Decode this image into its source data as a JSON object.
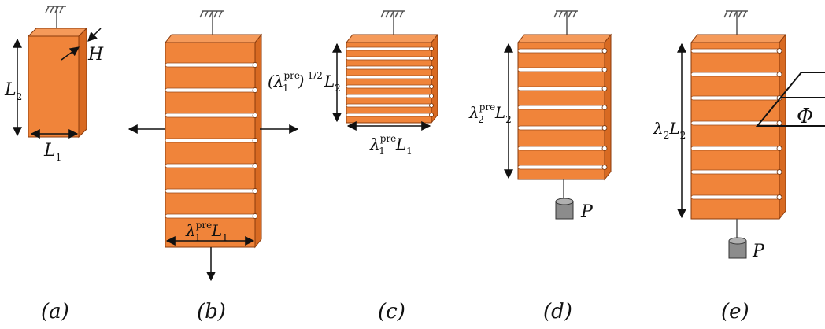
{
  "colors": {
    "front": "#f0843a",
    "side": "#d86a22",
    "top": "#f59a5a",
    "edge": "#8a3b0c",
    "slit": "#ffffff",
    "weight": "#8c8c8c",
    "ink": "#111111"
  },
  "icons": [
    "ground-hatch-icon",
    "weight-icon",
    "arrow-icon"
  ],
  "panels": {
    "a": {
      "caption": "(a)",
      "label_L2": "L",
      "label_L2_sub": "2",
      "label_L1": "L",
      "label_L1_sub": "1",
      "label_H": "H"
    },
    "b": {
      "caption": "(b)",
      "label_width": "λ",
      "label_width_sup": "pre",
      "label_width_sub": "1",
      "label_width_L": "L",
      "label_width_L_sub": "1"
    },
    "c": {
      "caption": "(c)",
      "label_height_open": "(λ",
      "label_height_sup": "pre",
      "label_height_sub": "1",
      "label_height_close": ")",
      "label_height_exp": "-1/2",
      "label_height_L": "L",
      "label_height_L_sub": "2",
      "label_width": "λ",
      "label_width_sup": "pre",
      "label_width_sub": "1",
      "label_width_L": "L",
      "label_width_L_sub": "1"
    },
    "d": {
      "caption": "(d)",
      "label_height": "λ",
      "label_height_sup": "pre",
      "label_height_sub": "2",
      "label_height_L": "L",
      "label_height_L_sub": "2",
      "weight_label": "P"
    },
    "e": {
      "caption": "(e)",
      "label_height": "λ",
      "label_height_sub": "2",
      "label_height_L": "L",
      "label_height_L_sub": "2",
      "weight_label": "P",
      "angle_label": "Φ"
    }
  }
}
